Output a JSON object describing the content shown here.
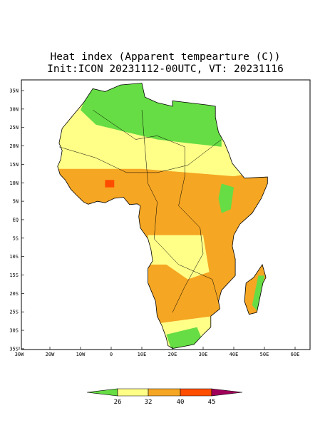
{
  "header": {
    "title": "Heat index (Apparent tempearture (C))",
    "subtitle": "Init:ICON 20231112-00UTC, VT: 20231116"
  },
  "map": {
    "lat_labels": [
      "35N",
      "30N",
      "25N",
      "20N",
      "15N",
      "10N",
      "5N",
      "EQ",
      "5S",
      "10S",
      "15S",
      "20S",
      "25S",
      "30S",
      "35S"
    ],
    "lon_labels": [
      "30W",
      "20W",
      "10W",
      "0",
      "10E",
      "20E",
      "30E",
      "40E",
      "50E",
      "60E"
    ]
  },
  "colorbar": {
    "labels": [
      26,
      32,
      40,
      45
    ],
    "colors": [
      "#66dd44",
      "#ffff88",
      "#f5a623",
      "#ff4d00",
      "#a0005a"
    ]
  }
}
